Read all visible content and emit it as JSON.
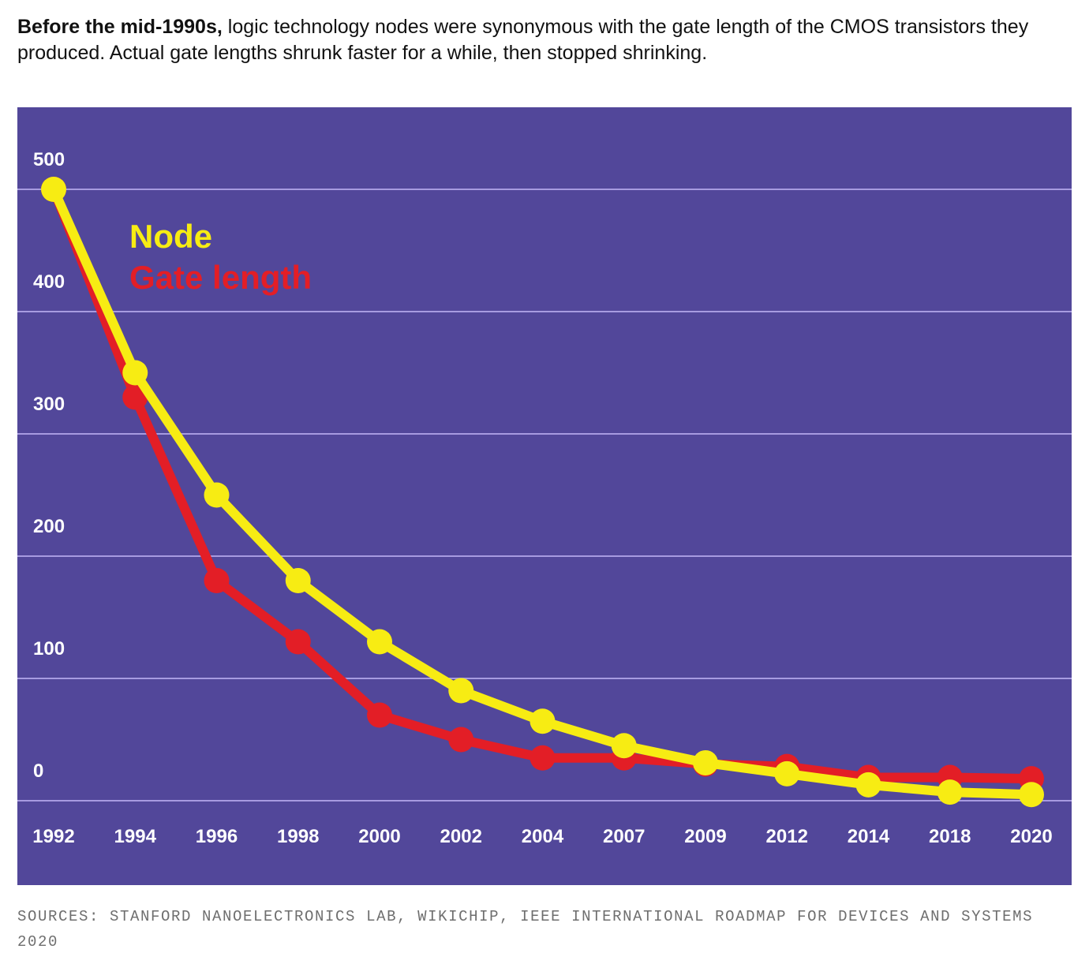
{
  "intro": {
    "bold": "Before the mid-1990s,",
    "rest": " logic technology nodes were synonymous with the gate length of the CMOS transistors they produced. Actual gate lengths shrunk faster for a while, then stopped shrinking."
  },
  "sources": "SOURCES: STANFORD NANOELECTRONICS LAB, WIKICHIP, IEEE INTERNATIONAL ROADMAP FOR DEVICES AND SYSTEMS 2020",
  "colors": {
    "background": "#52479a",
    "gridline": "#a79be0",
    "node": "#f7ec13",
    "gate": "#e31e26",
    "tick": "#ffffff"
  },
  "chart_data": {
    "type": "line",
    "title": "",
    "xlabel": "",
    "ylabel": "",
    "categories": [
      "1992",
      "1994",
      "1996",
      "1998",
      "2000",
      "2002",
      "2004",
      "2007",
      "2009",
      "2012",
      "2014",
      "2018",
      "2020"
    ],
    "y_tick_labels": [
      "500",
      "400",
      "300",
      "200",
      "100",
      "0"
    ],
    "ylim": [
      -25,
      525
    ],
    "gridline_values": [
      475,
      375,
      275,
      175,
      75,
      -25
    ],
    "grid": true,
    "legend_position": "top-left",
    "series": [
      {
        "name": "Gate length",
        "color": "#e31e26",
        "values": [
          475,
          305,
          155,
          105,
          45,
          25,
          10,
          10,
          5,
          3,
          -6,
          -6,
          -7
        ]
      },
      {
        "name": "Node",
        "color": "#f7ec13",
        "values": [
          475,
          325,
          225,
          155,
          105,
          65,
          40,
          20,
          6,
          -3,
          -12,
          -18,
          -20
        ]
      }
    ]
  }
}
